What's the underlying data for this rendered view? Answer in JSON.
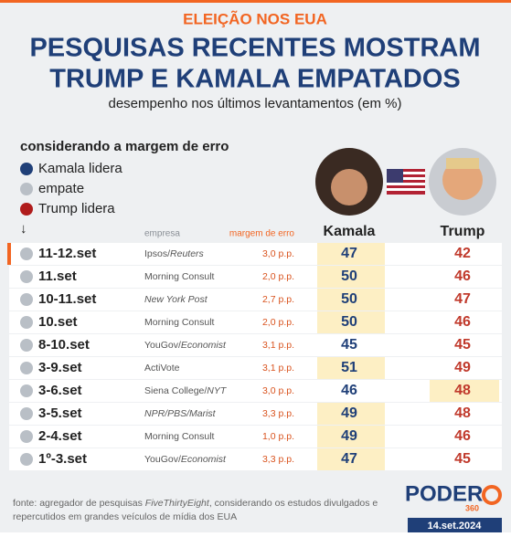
{
  "header": {
    "kicker": "ELEIÇÃO NOS EUA",
    "title_lines": [
      "PESQUISAS RECENTES MOSTRAM",
      "TRUMP E KAMALA EMPATADOS"
    ],
    "subtitle": "desempenho nos últimos levantamentos (em %)"
  },
  "legend": {
    "title": "considerando a margem de erro",
    "items": [
      {
        "key": "kamala",
        "label": "Kamala lidera",
        "color": "#1f3f78"
      },
      {
        "key": "empate",
        "label": "empate",
        "color": "#b9bfc6"
      },
      {
        "key": "trump",
        "label": "Trump lidera",
        "color": "#b01c1c"
      }
    ],
    "arrow": "↓"
  },
  "columns": {
    "pollster": "empresa",
    "margin": "margem de erro",
    "kamala": "Kamala",
    "trump": "Trump"
  },
  "rows": [
    {
      "date": "11-12.set",
      "pollster": [
        {
          "text": "Ipsos/",
          "italic": false
        },
        {
          "text": "Reuters",
          "italic": true
        }
      ],
      "margin": "3,0 p.p.",
      "kamala": 47,
      "trump": 42,
      "status": "empate",
      "shaded": "kamala",
      "new": true
    },
    {
      "date": "11.set",
      "pollster": [
        {
          "text": "Morning Consult",
          "italic": false
        }
      ],
      "margin": "2,0 p.p.",
      "kamala": 50,
      "trump": 46,
      "status": "empate",
      "shaded": "kamala",
      "new": false
    },
    {
      "date": "10-11.set",
      "pollster": [
        {
          "text": "New York Post",
          "italic": true
        }
      ],
      "margin": "2,7 p.p.",
      "kamala": 50,
      "trump": 47,
      "status": "empate",
      "shaded": "kamala",
      "new": false
    },
    {
      "date": "10.set",
      "pollster": [
        {
          "text": "Morning Consult",
          "italic": false
        }
      ],
      "margin": "2,0 p.p.",
      "kamala": 50,
      "trump": 46,
      "status": "empate",
      "shaded": "kamala",
      "new": false
    },
    {
      "date": "8-10.set",
      "pollster": [
        {
          "text": "YouGov/",
          "italic": false
        },
        {
          "text": "Economist",
          "italic": true
        }
      ],
      "margin": "3,1 p.p.",
      "kamala": 45,
      "trump": 45,
      "status": "empate",
      "shaded": "none",
      "new": false
    },
    {
      "date": "3-9.set",
      "pollster": [
        {
          "text": "ActiVote",
          "italic": false
        }
      ],
      "margin": "3,1 p.p.",
      "kamala": 51,
      "trump": 49,
      "status": "empate",
      "shaded": "kamala",
      "new": false
    },
    {
      "date": "3-6.set",
      "pollster": [
        {
          "text": "Siena College/",
          "italic": false
        },
        {
          "text": "NYT",
          "italic": true
        }
      ],
      "margin": "3,0 p.p.",
      "kamala": 46,
      "trump": 48,
      "status": "empate",
      "shaded": "trump",
      "new": false
    },
    {
      "date": "3-5.set",
      "pollster": [
        {
          "text": "NPR/PBS/Marist",
          "italic": true
        }
      ],
      "margin": "3,3 p.p.",
      "kamala": 49,
      "trump": 48,
      "status": "empate",
      "shaded": "kamala",
      "new": false
    },
    {
      "date": "2-4.set",
      "pollster": [
        {
          "text": "Morning Consult",
          "italic": false
        }
      ],
      "margin": "1,0 p.p.",
      "kamala": 49,
      "trump": 46,
      "status": "empate",
      "shaded": "kamala",
      "new": false
    },
    {
      "date": "1º-3.set",
      "pollster": [
        {
          "text": "YouGov/",
          "italic": false
        },
        {
          "text": "Economist",
          "italic": true
        }
      ],
      "margin": "3,3 p.p.",
      "kamala": 47,
      "trump": 45,
      "status": "empate",
      "shaded": "kamala",
      "new": false
    }
  ],
  "footer": {
    "source": [
      {
        "text": "fonte: agregador de pesquisas ",
        "italic": false
      },
      {
        "text": "FiveThirtyEight",
        "italic": true
      },
      {
        "text": ", considerando os estudos divulgados e",
        "italic": false
      }
    ],
    "source_line2": "repercutidos em grandes veículos de mídia dos EUA",
    "logo": "PODER",
    "logo_sub": "360",
    "date": "14.set.2024"
  }
}
